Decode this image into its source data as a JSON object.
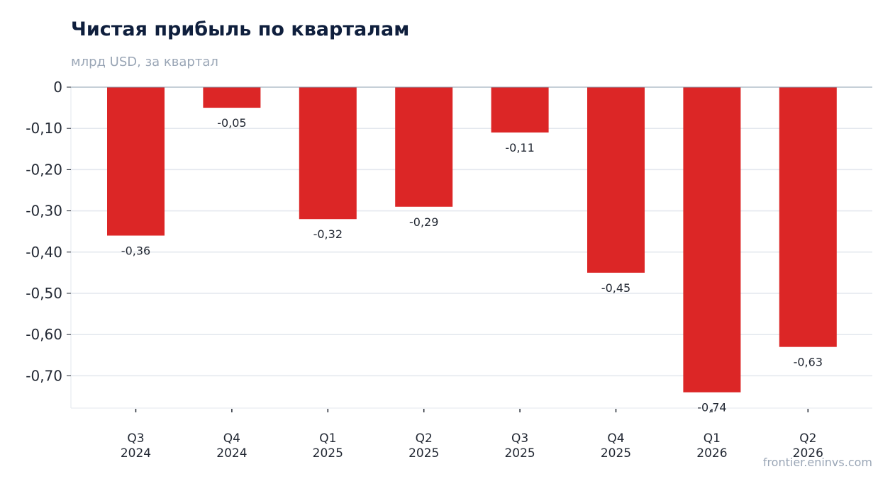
{
  "header": {
    "title": "Чистая прибыль по кварталам",
    "subtitle": "млрд USD, за квартал"
  },
  "footer": {
    "source": "frontier.eninvs.com"
  },
  "colors": {
    "bar": "#dc2626",
    "grid": "#e3e7ee",
    "zero_line": "#8da0b0",
    "text": "#222833",
    "title": "#0f1f3d",
    "muted": "#9aa6b6"
  },
  "chart_data": {
    "type": "bar",
    "title": "Чистая прибыль по кварталам",
    "subtitle": "млрд USD, за квартал",
    "xlabel": "",
    "ylabel": "",
    "categories": [
      [
        "Q3",
        "2024"
      ],
      [
        "Q4",
        "2024"
      ],
      [
        "Q1",
        "2025"
      ],
      [
        "Q2",
        "2025"
      ],
      [
        "Q3",
        "2025"
      ],
      [
        "Q4",
        "2025"
      ],
      [
        "Q1",
        "2026"
      ],
      [
        "Q2",
        "2026"
      ]
    ],
    "values": [
      -0.36,
      -0.05,
      -0.32,
      -0.29,
      -0.11,
      -0.45,
      -0.74,
      -0.63
    ],
    "value_labels": [
      "-0,36",
      "-0,05",
      "-0,32",
      "-0,29",
      "-0,11",
      "-0,45",
      "-0,74",
      "-0,63"
    ],
    "ylim": [
      -0.78,
      0
    ],
    "yticks": [
      0,
      -0.1,
      -0.2,
      -0.3,
      -0.4,
      -0.5,
      -0.6,
      -0.7
    ],
    "ytick_labels": [
      "0",
      "-0,10",
      "-0,20",
      "-0,30",
      "-0,40",
      "-0,50",
      "-0,60",
      "-0,70"
    ],
    "grid": true,
    "legend": "none"
  }
}
